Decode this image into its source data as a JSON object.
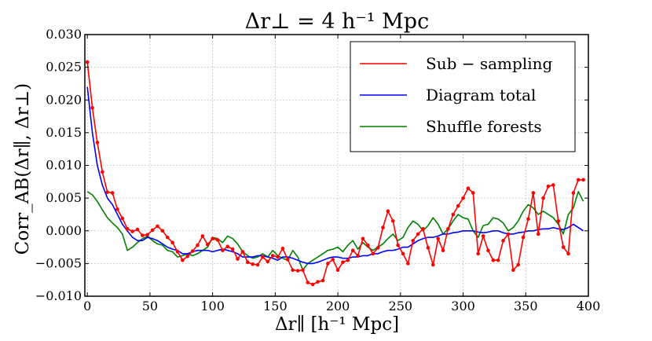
{
  "chart_data": {
    "type": "line",
    "title": "Δr⊥ = 4 h⁻¹ Mpc",
    "xlabel": "Δr∥ [h⁻¹ Mpc]",
    "ylabel": "Corr_AB(Δr∥, Δr⊥)",
    "xlim": [
      -2,
      400
    ],
    "ylim": [
      -0.01,
      0.03
    ],
    "xticks": [
      0,
      50,
      100,
      150,
      200,
      250,
      300,
      350,
      400
    ],
    "xtick_labels": [
      "0",
      "50",
      "100",
      "150",
      "200",
      "250",
      "300",
      "350",
      "400"
    ],
    "yticks": [
      -0.01,
      -0.005,
      0.0,
      0.005,
      0.01,
      0.015,
      0.02,
      0.025,
      0.03
    ],
    "ytick_labels": [
      "−0.010",
      "−0.005",
      "0.000",
      "0.005",
      "0.010",
      "0.015",
      "0.020",
      "0.025",
      "0.030"
    ],
    "grid": true,
    "legend_position": "top-right",
    "series": [
      {
        "name": "Sub − sampling",
        "color": "#ff0000",
        "markers": true,
        "x": [
          0,
          4,
          8,
          12,
          16,
          20,
          24,
          28,
          32,
          36,
          40,
          44,
          48,
          52,
          56,
          60,
          64,
          68,
          72,
          76,
          80,
          84,
          88,
          92,
          96,
          100,
          104,
          108,
          112,
          116,
          120,
          124,
          128,
          132,
          136,
          140,
          144,
          148,
          152,
          156,
          160,
          164,
          168,
          172,
          176,
          180,
          184,
          188,
          192,
          196,
          200,
          204,
          208,
          212,
          216,
          220,
          224,
          228,
          232,
          236,
          240,
          244,
          248,
          252,
          256,
          260,
          264,
          268,
          272,
          276,
          280,
          284,
          288,
          292,
          296,
          300,
          304,
          308,
          312,
          316,
          320,
          324,
          328,
          332,
          336,
          340,
          344,
          348,
          352,
          356,
          360,
          364,
          368,
          372,
          376,
          380,
          384,
          388,
          392,
          396
        ],
        "y": [
          0.0258,
          0.0188,
          0.0135,
          0.009,
          0.0059,
          0.0058,
          0.0033,
          0.0019,
          0.0003,
          -0.0001,
          0.0002,
          -0.0007,
          -0.0006,
          0.0001,
          0.0007,
          0.0,
          -0.001,
          -0.0018,
          -0.0032,
          -0.0045,
          -0.0039,
          -0.0031,
          -0.0022,
          -0.0008,
          -0.0021,
          -0.0012,
          -0.0014,
          -0.003,
          -0.0024,
          -0.0028,
          -0.0043,
          -0.0032,
          -0.0048,
          -0.0051,
          -0.0052,
          -0.004,
          -0.0047,
          -0.0038,
          -0.004,
          -0.0027,
          -0.0044,
          -0.006,
          -0.0061,
          -0.006,
          -0.0079,
          -0.0082,
          -0.0078,
          -0.0076,
          -0.005,
          -0.0044,
          -0.006,
          -0.0048,
          -0.0045,
          -0.003,
          -0.0038,
          -0.0012,
          -0.0022,
          -0.0035,
          -0.0026,
          0.0005,
          0.003,
          0.0015,
          -0.0022,
          -0.0035,
          -0.005,
          -0.0015,
          -0.0005,
          0.0003,
          -0.0026,
          -0.0052,
          -0.0012,
          -0.003,
          0.0003,
          0.0025,
          0.0038,
          0.005,
          0.0065,
          0.0058,
          -0.0035,
          -0.0008,
          -0.003,
          -0.0045,
          -0.0045,
          -0.0015,
          -0.0005,
          -0.006,
          -0.0052,
          -0.001,
          0.0018,
          0.0058,
          -0.0005,
          0.005,
          0.0068,
          0.007,
          0.0015,
          -0.0025,
          -0.0035,
          0.0058,
          0.0078,
          0.0078
        ]
      },
      {
        "name": "Diagram total",
        "color": "#0000ff",
        "markers": false,
        "x": [
          0,
          4,
          8,
          12,
          16,
          20,
          24,
          28,
          32,
          36,
          40,
          44,
          48,
          52,
          56,
          60,
          64,
          68,
          72,
          76,
          80,
          84,
          88,
          92,
          96,
          100,
          104,
          108,
          112,
          116,
          120,
          124,
          128,
          132,
          136,
          140,
          144,
          148,
          152,
          156,
          160,
          164,
          168,
          172,
          176,
          180,
          184,
          188,
          192,
          196,
          200,
          204,
          208,
          212,
          216,
          220,
          224,
          228,
          232,
          236,
          240,
          244,
          248,
          252,
          256,
          260,
          264,
          268,
          272,
          276,
          280,
          284,
          288,
          292,
          296,
          300,
          304,
          308,
          312,
          316,
          320,
          324,
          328,
          332,
          336,
          340,
          344,
          348,
          352,
          356,
          360,
          364,
          368,
          372,
          376,
          380,
          384,
          388,
          392,
          396
        ],
        "y": [
          0.022,
          0.015,
          0.01,
          0.007,
          0.005,
          0.004,
          0.0025,
          0.001,
          0.0,
          -0.001,
          -0.0015,
          -0.0015,
          -0.001,
          -0.0012,
          -0.0015,
          -0.002,
          -0.0025,
          -0.0028,
          -0.003,
          -0.0035,
          -0.0035,
          -0.0032,
          -0.003,
          -0.003,
          -0.003,
          -0.0032,
          -0.003,
          -0.0028,
          -0.003,
          -0.0032,
          -0.0035,
          -0.004,
          -0.004,
          -0.004,
          -0.0038,
          -0.0038,
          -0.004,
          -0.0042,
          -0.0045,
          -0.004,
          -0.004,
          -0.0042,
          -0.0045,
          -0.0048,
          -0.005,
          -0.005,
          -0.0048,
          -0.0045,
          -0.0042,
          -0.004,
          -0.004,
          -0.0042,
          -0.0042,
          -0.004,
          -0.004,
          -0.0038,
          -0.0038,
          -0.0035,
          -0.0035,
          -0.0032,
          -0.003,
          -0.003,
          -0.0028,
          -0.0025,
          -0.0025,
          -0.002,
          -0.0015,
          -0.0012,
          -0.001,
          -0.001,
          -0.0008,
          -0.0005,
          -0.0005,
          -0.0003,
          -0.0002,
          0.0,
          0.0,
          0.0,
          -0.0002,
          -0.0003,
          -0.0002,
          0.0,
          0.0,
          -0.0003,
          -0.0005,
          -0.0005,
          -0.0003,
          -0.0002,
          0.0,
          0.0,
          0.0002,
          0.0003,
          0.0003,
          0.0005,
          0.0003,
          0.0002,
          0.0005,
          0.001,
          0.0005,
          0.0
        ]
      },
      {
        "name": "Shuffle forests",
        "color": "#008000",
        "markers": false,
        "x": [
          0,
          4,
          8,
          12,
          16,
          20,
          24,
          28,
          32,
          36,
          40,
          44,
          48,
          52,
          56,
          60,
          64,
          68,
          72,
          76,
          80,
          84,
          88,
          92,
          96,
          100,
          104,
          108,
          112,
          116,
          120,
          124,
          128,
          132,
          136,
          140,
          144,
          148,
          152,
          156,
          160,
          164,
          168,
          172,
          176,
          180,
          184,
          188,
          192,
          196,
          200,
          204,
          208,
          212,
          216,
          220,
          224,
          228,
          232,
          236,
          240,
          244,
          248,
          252,
          256,
          260,
          264,
          268,
          272,
          276,
          280,
          284,
          288,
          292,
          296,
          300,
          304,
          308,
          312,
          316,
          320,
          324,
          328,
          332,
          336,
          340,
          344,
          348,
          352,
          356,
          360,
          364,
          368,
          372,
          376,
          380,
          384,
          388,
          392,
          396
        ],
        "y": [
          0.006,
          0.0055,
          0.0045,
          0.0032,
          0.002,
          0.0012,
          0.0005,
          -0.0005,
          -0.003,
          -0.0025,
          -0.0018,
          -0.0012,
          -0.0008,
          -0.0015,
          -0.002,
          -0.0022,
          -0.003,
          -0.0032,
          -0.004,
          -0.0038,
          -0.0035,
          -0.0038,
          -0.0035,
          -0.003,
          -0.0025,
          -0.001,
          -0.0012,
          -0.0018,
          -0.0008,
          -0.0012,
          -0.002,
          -0.0032,
          -0.0038,
          -0.0042,
          -0.004,
          -0.0035,
          -0.004,
          -0.003,
          -0.0038,
          -0.0042,
          -0.0045,
          -0.003,
          -0.004,
          -0.006,
          -0.005,
          -0.0045,
          -0.004,
          -0.0035,
          -0.003,
          -0.0028,
          -0.0025,
          -0.0032,
          -0.0022,
          -0.0015,
          -0.0028,
          -0.0018,
          -0.0025,
          -0.003,
          -0.0025,
          -0.002,
          -0.0012,
          -0.0005,
          -0.0015,
          -0.001,
          0.0005,
          0.0015,
          0.001,
          0.0,
          0.0008,
          0.002,
          0.001,
          -0.0005,
          0.0003,
          0.0015,
          0.0025,
          0.002,
          0.0018,
          0.0,
          -0.001,
          0.0008,
          0.001,
          0.002,
          0.0018,
          0.0012,
          0.0,
          0.0005,
          0.0015,
          0.003,
          0.004,
          0.0035,
          0.0025,
          0.003,
          0.0025,
          0.002,
          0.001,
          -0.0005,
          0.0025,
          0.0035,
          0.006,
          0.0045
        ]
      }
    ]
  }
}
